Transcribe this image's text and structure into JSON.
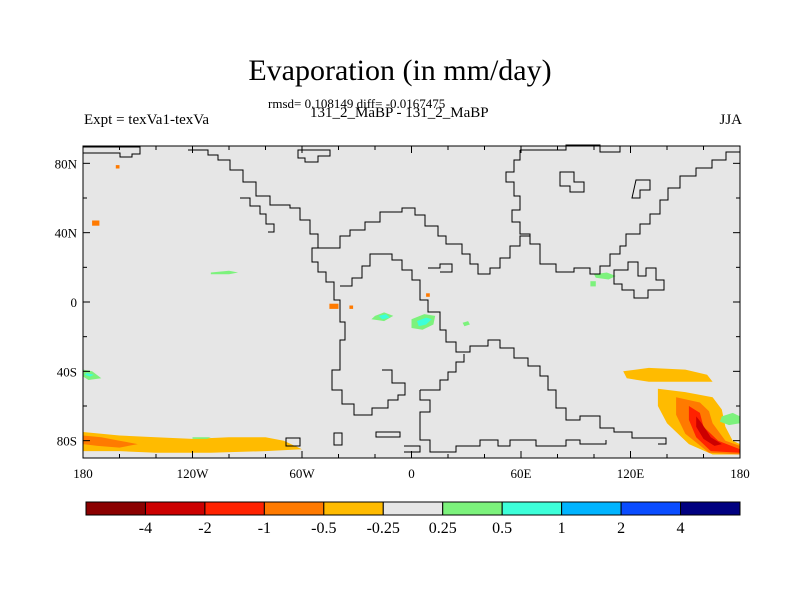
{
  "chart_data": {
    "type": "heatmap",
    "title": "Evaporation (in mm/day)",
    "stats": "rmsd= 0.108149 diff= -0.0167475",
    "subtitle": "131_2_MaBP - 131_2_MaBP",
    "left_label": "Expt = texVa1-texVa",
    "right_label": "JJA",
    "xlim": [
      -180,
      180
    ],
    "ylim": [
      -90,
      90
    ],
    "x_ticks": [
      {
        "value": -180,
        "label": "180"
      },
      {
        "value": -120,
        "label": "120W"
      },
      {
        "value": -60,
        "label": "60W"
      },
      {
        "value": 0,
        "label": "0"
      },
      {
        "value": 60,
        "label": "60E"
      },
      {
        "value": 120,
        "label": "120E"
      },
      {
        "value": 180,
        "label": "180"
      }
    ],
    "y_ticks": [
      {
        "value": 80,
        "label": "80N"
      },
      {
        "value": 40,
        "label": "40N"
      },
      {
        "value": 0,
        "label": "0"
      },
      {
        "value": -40,
        "label": "40S"
      },
      {
        "value": -80,
        "label": "80S"
      }
    ],
    "background_color": "#e6e6e6",
    "colorbar": {
      "colors": [
        "#8b0000",
        "#cc0000",
        "#ff2200",
        "#ff7a00",
        "#ffbb00",
        "#e6e6e6",
        "#7cf27c",
        "#3dffd9",
        "#00b4ff",
        "#0a4cff",
        "#000080"
      ],
      "labels": [
        "-4",
        "-2",
        "-1",
        "-0.5",
        "-0.25",
        "0.25",
        "0.5",
        "1",
        "2",
        "4"
      ]
    },
    "regions": [
      {
        "level": "-0.25",
        "points": [
          [
            -180,
            -75
          ],
          [
            -160,
            -77
          ],
          [
            -140,
            -78
          ],
          [
            -120,
            -79
          ],
          [
            -100,
            -78
          ],
          [
            -80,
            -78
          ],
          [
            -70,
            -80
          ],
          [
            -60,
            -85
          ],
          [
            -80,
            -86
          ],
          [
            -110,
            -87
          ],
          [
            -140,
            -87
          ],
          [
            -160,
            -86
          ],
          [
            -180,
            -86
          ]
        ]
      },
      {
        "level": "-0.5",
        "points": [
          [
            -180,
            -77
          ],
          [
            -170,
            -78
          ],
          [
            -160,
            -80
          ],
          [
            -150,
            -82
          ],
          [
            -160,
            -84
          ],
          [
            -172,
            -83
          ],
          [
            -180,
            -82
          ]
        ]
      },
      {
        "level": "-0.25",
        "points": [
          [
            116,
            -40
          ],
          [
            130,
            -38
          ],
          [
            150,
            -39
          ],
          [
            162,
            -42
          ],
          [
            165,
            -46
          ],
          [
            148,
            -46
          ],
          [
            130,
            -46
          ],
          [
            118,
            -44
          ]
        ]
      },
      {
        "level": "-0.25",
        "points": [
          [
            135,
            -50
          ],
          [
            150,
            -52
          ],
          [
            165,
            -55
          ],
          [
            170,
            -62
          ],
          [
            172,
            -72
          ],
          [
            176,
            -80
          ],
          [
            180,
            -82
          ],
          [
            180,
            -88
          ],
          [
            165,
            -88
          ],
          [
            152,
            -82
          ],
          [
            140,
            -70
          ],
          [
            135,
            -60
          ]
        ]
      },
      {
        "level": "-0.5",
        "points": [
          [
            145,
            -55
          ],
          [
            158,
            -58
          ],
          [
            163,
            -63
          ],
          [
            165,
            -70
          ],
          [
            172,
            -80
          ],
          [
            180,
            -83
          ],
          [
            180,
            -88
          ],
          [
            163,
            -87
          ],
          [
            150,
            -76
          ],
          [
            145,
            -65
          ]
        ]
      },
      {
        "level": "-1",
        "points": [
          [
            152,
            -60
          ],
          [
            158,
            -64
          ],
          [
            160,
            -72
          ],
          [
            168,
            -80
          ],
          [
            180,
            -85
          ],
          [
            180,
            -87
          ],
          [
            164,
            -86
          ],
          [
            156,
            -78
          ],
          [
            152,
            -68
          ]
        ]
      },
      {
        "level": "-2",
        "points": [
          [
            156,
            -66
          ],
          [
            159,
            -70
          ],
          [
            164,
            -78
          ],
          [
            170,
            -82
          ],
          [
            166,
            -83
          ],
          [
            160,
            -79
          ],
          [
            156,
            -72
          ]
        ]
      },
      {
        "level": "0.25",
        "points": [
          [
            170,
            -66
          ],
          [
            176,
            -64
          ],
          [
            180,
            -66
          ],
          [
            180,
            -70
          ],
          [
            174,
            -71
          ],
          [
            169,
            -69
          ]
        ]
      },
      {
        "level": "0.25",
        "points": [
          [
            -180,
            -39
          ],
          [
            -175,
            -40
          ],
          [
            -170,
            -44
          ],
          [
            -177,
            -45
          ],
          [
            -180,
            -43
          ]
        ]
      },
      {
        "level": "0.5",
        "points": [
          [
            -178,
            -41
          ],
          [
            -174,
            -42
          ],
          [
            -176,
            -43
          ],
          [
            -179,
            -42
          ]
        ]
      },
      {
        "level": "0.25",
        "points": [
          [
            -110,
            17
          ],
          [
            -100,
            18
          ],
          [
            -95,
            17
          ],
          [
            -100,
            16
          ],
          [
            -110,
            16
          ]
        ]
      },
      {
        "level": "0.25",
        "points": [
          [
            -120,
            -78
          ],
          [
            -110,
            -78
          ],
          [
            -112,
            -79
          ],
          [
            -120,
            -79
          ]
        ]
      },
      {
        "level": "0.25",
        "points": [
          [
            -20,
            -8
          ],
          [
            -15,
            -6
          ],
          [
            -10,
            -8
          ],
          [
            -15,
            -11
          ],
          [
            -22,
            -10
          ]
        ]
      },
      {
        "level": "0.5",
        "points": [
          [
            -18,
            -8
          ],
          [
            -14,
            -7
          ],
          [
            -12,
            -9
          ],
          [
            -16,
            -10
          ]
        ]
      },
      {
        "level": "0.25",
        "points": [
          [
            0,
            -10
          ],
          [
            7,
            -7
          ],
          [
            13,
            -8
          ],
          [
            12,
            -13
          ],
          [
            6,
            -16
          ],
          [
            0,
            -15
          ]
        ]
      },
      {
        "level": "0.5",
        "points": [
          [
            3,
            -11
          ],
          [
            8,
            -9
          ],
          [
            11,
            -10
          ],
          [
            8,
            -13
          ],
          [
            4,
            -14
          ]
        ]
      },
      {
        "level": "0.25",
        "points": [
          [
            28,
            -12
          ],
          [
            31,
            -11
          ],
          [
            32,
            -13
          ],
          [
            29,
            -14
          ]
        ]
      },
      {
        "level": "0.25",
        "points": [
          [
            100,
            16
          ],
          [
            107,
            17
          ],
          [
            112,
            15
          ],
          [
            108,
            13
          ],
          [
            101,
            14
          ]
        ]
      },
      {
        "level": "0.25",
        "points": [
          [
            98,
            12
          ],
          [
            101,
            12
          ],
          [
            101,
            9
          ],
          [
            98,
            9
          ]
        ]
      },
      {
        "level": "-0.5",
        "points": [
          [
            -45,
            -1
          ],
          [
            -40,
            -1
          ],
          [
            -40,
            -4
          ],
          [
            -45,
            -4
          ]
        ]
      },
      {
        "level": "-0.5",
        "points": [
          [
            -34,
            -2
          ],
          [
            -32,
            -2
          ],
          [
            -32,
            -4
          ],
          [
            -34,
            -4
          ]
        ]
      },
      {
        "level": "-0.5",
        "points": [
          [
            8,
            5
          ],
          [
            10,
            5
          ],
          [
            10,
            3
          ],
          [
            8,
            3
          ]
        ]
      },
      {
        "level": "-0.5",
        "points": [
          [
            -175,
            47
          ],
          [
            -171,
            47
          ],
          [
            -171,
            44
          ],
          [
            -175,
            44
          ]
        ]
      },
      {
        "level": "-0.5",
        "points": [
          [
            -162,
            79
          ],
          [
            -160,
            79
          ],
          [
            -160,
            77
          ],
          [
            -162,
            77
          ]
        ]
      },
      {
        "level": "-0.25",
        "points": [
          [
            -150,
            -80
          ],
          [
            -135,
            -79
          ],
          [
            -130,
            -81
          ],
          [
            -142,
            -82
          ]
        ]
      }
    ]
  }
}
